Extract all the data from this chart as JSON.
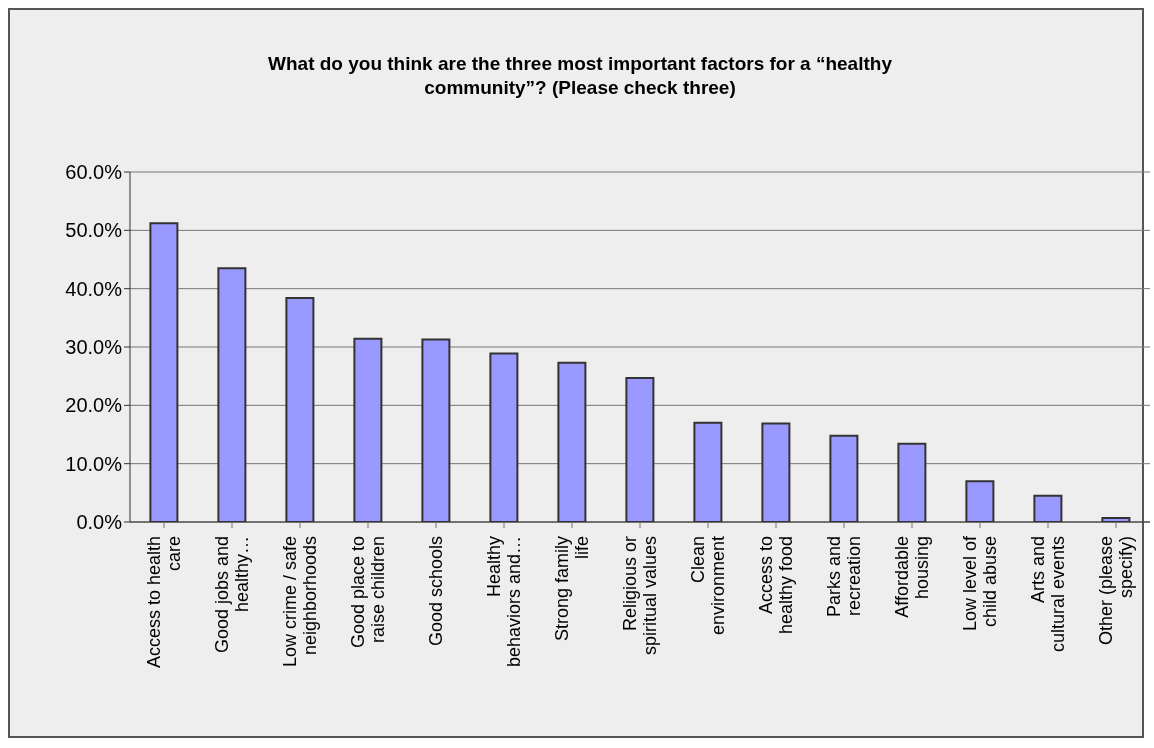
{
  "chart_data": {
    "type": "bar",
    "title": "What do you think are the three most important factors for a “healthy community”? (Please check three)",
    "categories": [
      "Access to health care",
      "Good jobs and healthy…",
      "Low crime / safe neighborhoods",
      "Good place to raise children",
      "Good schools",
      "Healthy behaviors and…",
      "Strong family life",
      "Religious or spiritual values",
      "Clean environment",
      "Access to healthy food",
      "Parks and recreation",
      "Affordable housing",
      "Low level of child abuse",
      "Arts and cultural events",
      "Other (please specify)"
    ],
    "values": [
      51.2,
      43.5,
      38.4,
      31.4,
      31.3,
      28.9,
      27.3,
      24.7,
      17.0,
      16.9,
      14.8,
      13.4,
      7.0,
      4.5,
      0.7
    ],
    "color": "#9999ff",
    "ylim": [
      0,
      60
    ],
    "yticks": [
      {
        "value": 0,
        "label": "0.0%"
      },
      {
        "value": 10,
        "label": "10.0%"
      },
      {
        "value": 20,
        "label": "20.0%"
      },
      {
        "value": 30,
        "label": "30.0%"
      },
      {
        "value": 40,
        "label": "40.0%"
      },
      {
        "value": 50,
        "label": "50.0%"
      },
      {
        "value": 60,
        "label": "60.0%"
      }
    ],
    "grid": "y"
  }
}
